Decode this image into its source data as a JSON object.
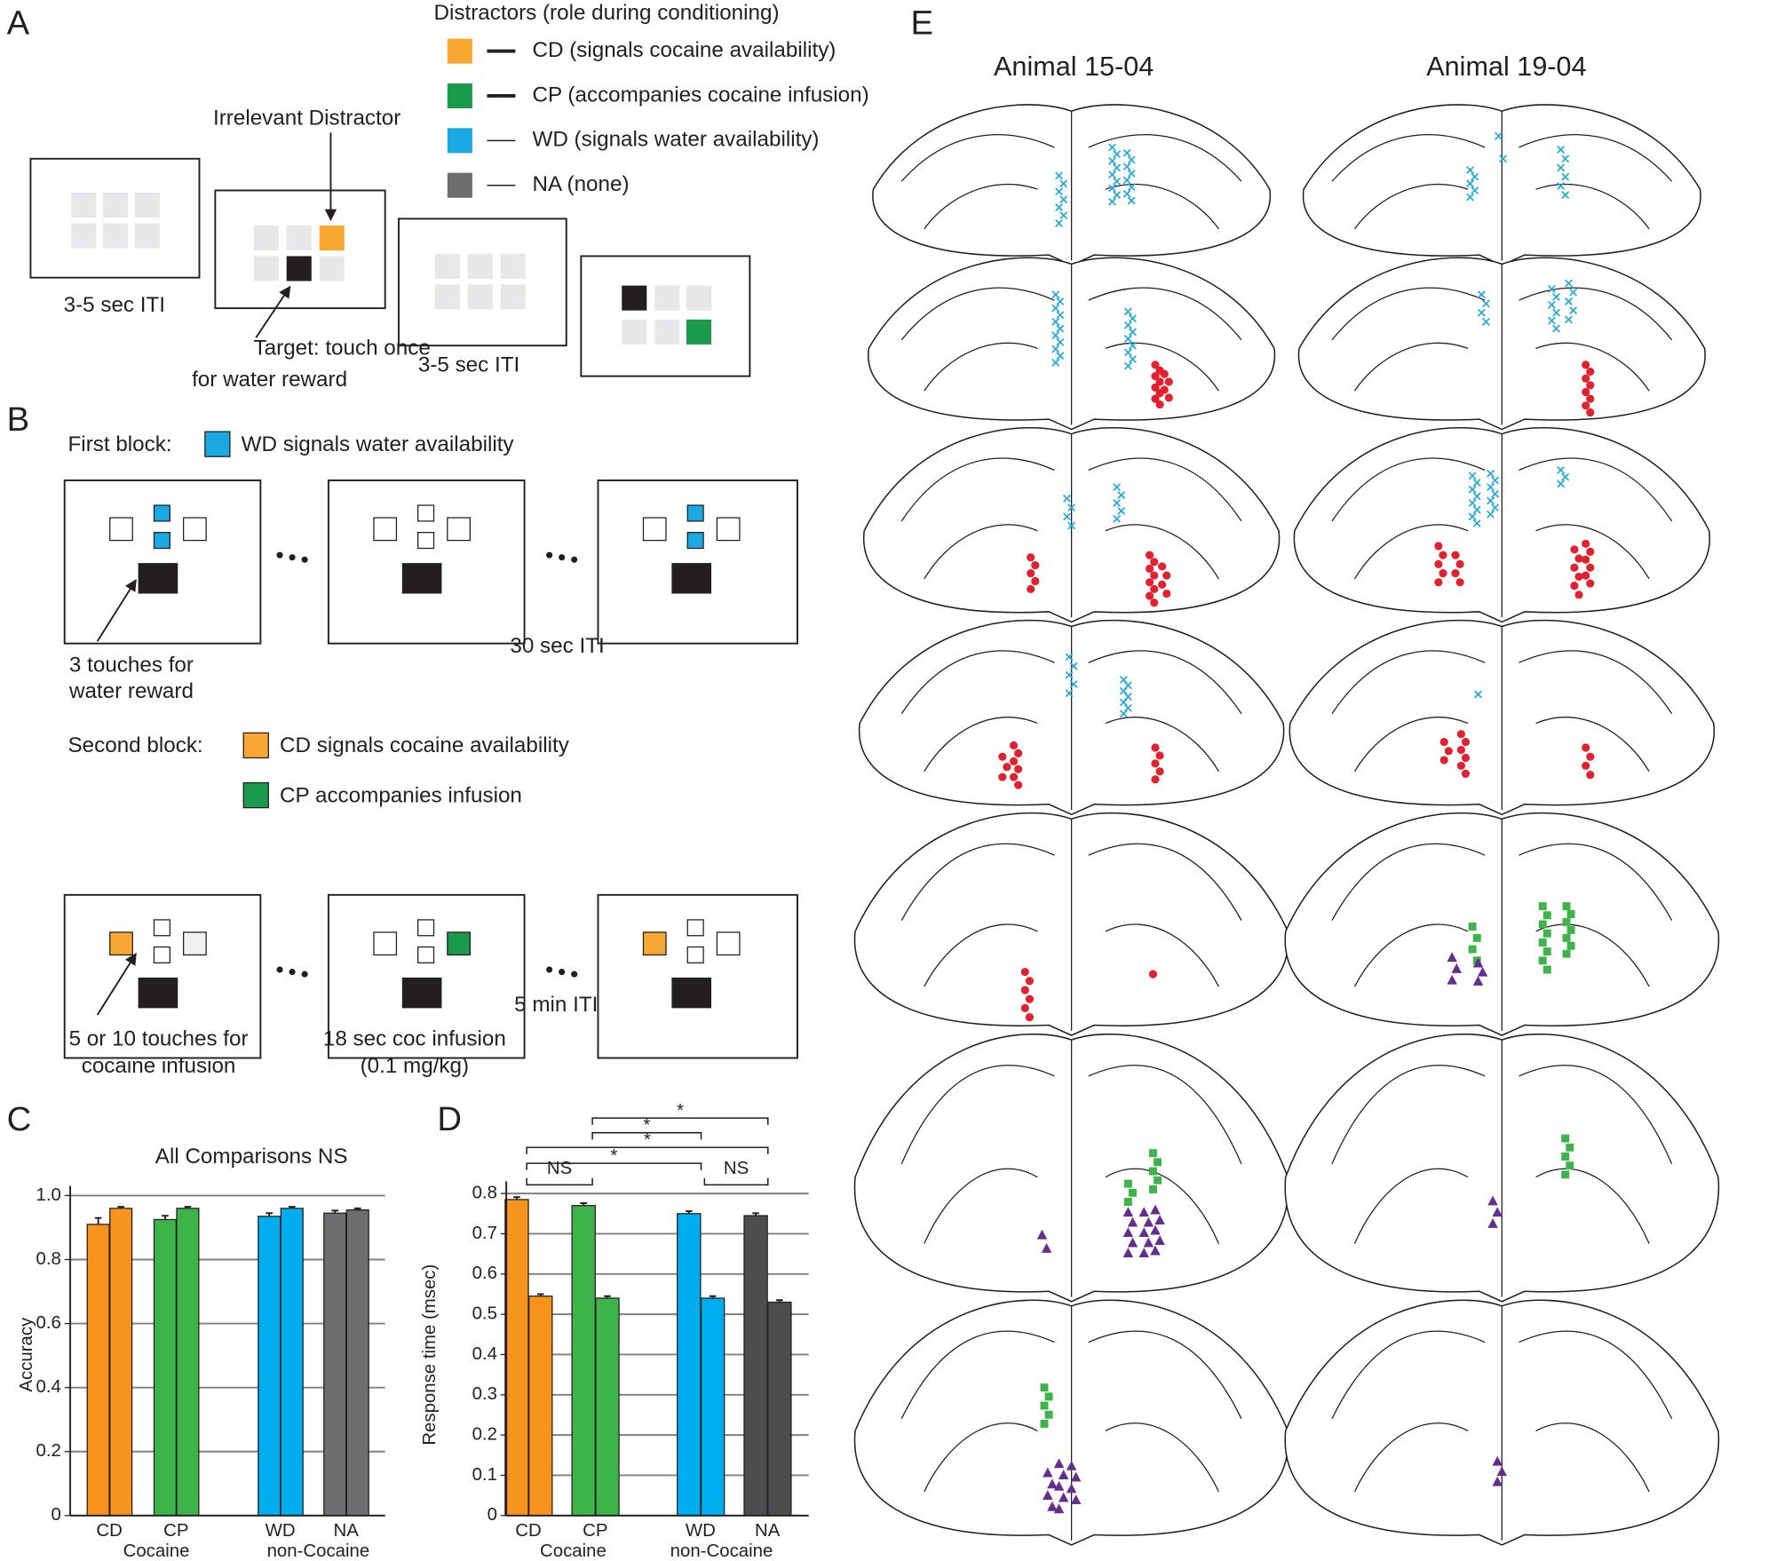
{
  "panel_labels": [
    "A",
    "B",
    "C",
    "D",
    "E"
  ],
  "panel_a": {
    "legend_title": "Distractors (role during conditioning)",
    "legend": [
      {
        "color": "#f7a833",
        "label": "CD (signals cocaine availability)"
      },
      {
        "color": "#1a9a4a",
        "label": "CP (accompanies cocaine infusion)"
      },
      {
        "color": "#1ba9e1",
        "label": "WD (signals water availability)"
      },
      {
        "color": "#6d6e70",
        "label": "NA (none)"
      }
    ],
    "irrelevant": "Irrelevant Distractor",
    "iti_1": "3-5 sec ITI",
    "target": [
      "Target: touch once",
      "for water reward"
    ],
    "iti_2": "3-5 sec ITI"
  },
  "panel_b": {
    "first_block": "First block:",
    "wd_note": "WD signals water availability",
    "touches_1": [
      "3 touches for",
      "water reward"
    ],
    "iti_1": "30 sec ITI",
    "second_block": "Second block:",
    "cd_note": "CD signals cocaine availability",
    "cp_note": "CP accompanies infusion",
    "touches_2": [
      "5 or 10 touches for",
      "cocaine infusion"
    ],
    "infusion": [
      "18 sec coc infusion",
      "(0.1 mg/kg)"
    ],
    "iti_2": "5 min ITI"
  },
  "panel_e": {
    "animals": [
      "Animal 15-04",
      "Animal 19-04"
    ]
  },
  "chart_data": [
    {
      "type": "bar",
      "title": "All Comparisons NS",
      "ylabel": "Accuracy",
      "categories": [
        "CD",
        "CP",
        "WD",
        "NA"
      ],
      "groups": [
        "Cocaine",
        "non-Cocaine"
      ],
      "colors": [
        "#f7941d",
        "#3cb449",
        "#00aeef",
        "#6d6e70"
      ],
      "series": [
        {
          "values": [
            0.91,
            0.925,
            0.935,
            0.945
          ],
          "errors": [
            0.02,
            0.012,
            0.01,
            0.008
          ]
        },
        {
          "values": [
            0.96,
            0.96,
            0.96,
            0.955
          ],
          "errors": [
            0.005,
            0.005,
            0.005,
            0.005
          ]
        }
      ],
      "ylim": [
        0,
        1.03
      ],
      "yticks": [
        0,
        0.2,
        0.4,
        0.6,
        0.8,
        {
          "value": 1,
          "label": "1.0"
        }
      ],
      "grid": true
    },
    {
      "type": "bar",
      "ylabel": "Response time (msec)",
      "categories": [
        "CD",
        "CP",
        "WD",
        "NA"
      ],
      "groups": [
        "Cocaine",
        "non-Cocaine"
      ],
      "colors": [
        "#f7941d",
        "#3cb449",
        "#00aeef",
        "#4d4d4f"
      ],
      "series": [
        {
          "values": [
            0.785,
            0.77,
            0.75,
            0.745
          ],
          "errors": [
            0.006,
            0.006,
            0.006,
            0.006
          ]
        },
        {
          "values": [
            0.545,
            0.54,
            0.54,
            0.53
          ],
          "errors": [
            0.005,
            0.005,
            0.005,
            0.005
          ]
        }
      ],
      "ylim": [
        0,
        0.83
      ],
      "yticks": [
        0,
        0.1,
        0.2,
        0.3,
        0.4,
        0.5,
        0.6,
        0.7,
        0.8
      ],
      "grid": true,
      "annotations": [
        "*",
        "*",
        "*",
        "*",
        "NS",
        "NS"
      ]
    }
  ]
}
